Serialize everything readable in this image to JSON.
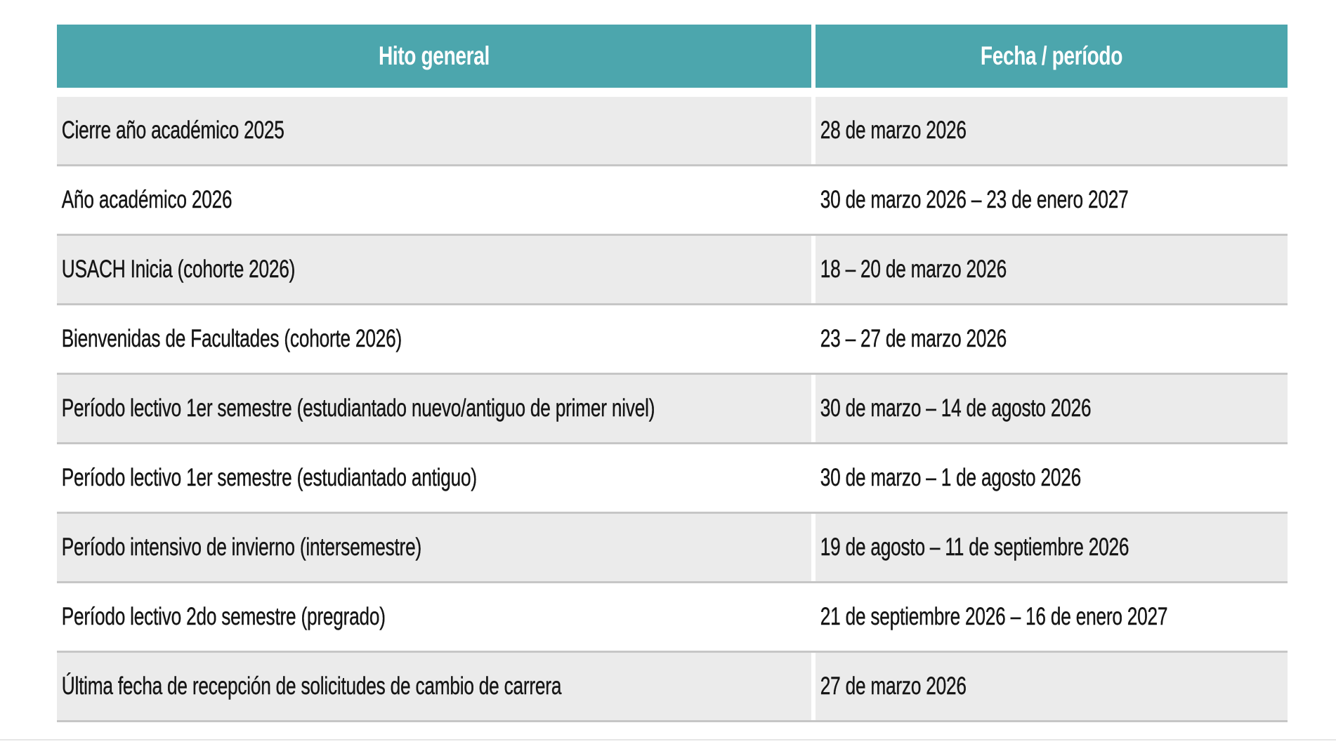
{
  "table": {
    "columns": [
      {
        "label": "Hito general"
      },
      {
        "label": "Fecha / período"
      }
    ],
    "rows": [
      {
        "hito": "Cierre año académico 2025",
        "fecha": "28 de marzo 2026"
      },
      {
        "hito": "Año académico 2026",
        "fecha": "30 de marzo 2026 – 23 de enero 2027"
      },
      {
        "hito": "USACH Inicia (cohorte 2026)",
        "fecha": "18 – 20 de marzo 2026"
      },
      {
        "hito": "Bienvenidas de Facultades (cohorte 2026)",
        "fecha": "23 – 27 de marzo 2026"
      },
      {
        "hito": "Período lectivo 1er semestre (estudiantado nuevo/antiguo de primer nivel)",
        "fecha": "30 de marzo – 14 de agosto 2026"
      },
      {
        "hito": "Período lectivo 1er semestre (estudiantado antiguo)",
        "fecha": "30 de marzo – 1 de agosto 2026"
      },
      {
        "hito": "Período intensivo de invierno (intersemestre)",
        "fecha": "19 de agosto – 11 de septiembre 2026"
      },
      {
        "hito": "Período lectivo 2do semestre (pregrado)",
        "fecha": "21 de septiembre 2026 – 16 de enero 2027"
      },
      {
        "hito": "Última fecha de recepción de solicitudes de cambio de carrera",
        "fecha": "27 de marzo 2026"
      }
    ]
  },
  "colors": {
    "header_bg": "#4ca6ad",
    "header_text": "#ffffff",
    "row_alt_bg": "#ebebeb",
    "row_bg": "#ffffff",
    "row_border": "#c6c6c6",
    "text": "#151515"
  }
}
